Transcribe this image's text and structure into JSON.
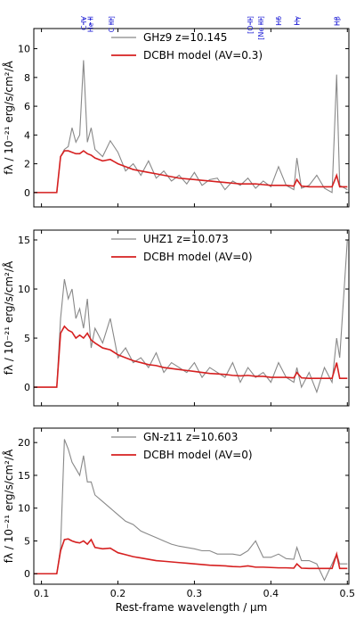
{
  "chart_data": [
    {
      "type": "line",
      "ylabel": "fλ / 10⁻²¹ erg/s/cm²/Å",
      "x": [
        0.09,
        0.1,
        0.11,
        0.12,
        0.125,
        0.13,
        0.135,
        0.14,
        0.145,
        0.15,
        0.155,
        0.16,
        0.165,
        0.17,
        0.18,
        0.19,
        0.2,
        0.21,
        0.22,
        0.23,
        0.24,
        0.25,
        0.26,
        0.27,
        0.28,
        0.29,
        0.3,
        0.31,
        0.32,
        0.33,
        0.34,
        0.35,
        0.36,
        0.37,
        0.38,
        0.39,
        0.4,
        0.41,
        0.42,
        0.43,
        0.434,
        0.44,
        0.45,
        0.46,
        0.47,
        0.48,
        0.486,
        0.49,
        0.5
      ],
      "series": [
        {
          "name": "GHz9 z=10.145",
          "color": "#888888",
          "values": [
            0,
            0,
            0,
            0,
            2.5,
            3.0,
            3.2,
            4.5,
            3.5,
            4.0,
            9.2,
            3.5,
            4.5,
            3.0,
            2.5,
            3.6,
            2.8,
            1.5,
            2.0,
            1.2,
            2.2,
            1.0,
            1.5,
            0.8,
            1.2,
            0.6,
            1.4,
            0.5,
            0.9,
            1.0,
            0.2,
            0.8,
            0.5,
            1.0,
            0.3,
            0.8,
            0.4,
            1.8,
            0.5,
            0.2,
            2.4,
            0.3,
            0.5,
            1.2,
            0.3,
            0.0,
            8.2,
            0.5,
            0.2
          ]
        },
        {
          "name": "DCBH model (AV=0.3)",
          "color": "#d62020",
          "values": [
            0,
            0,
            0,
            0,
            2.5,
            2.9,
            2.9,
            2.8,
            2.7,
            2.7,
            2.9,
            2.7,
            2.6,
            2.4,
            2.2,
            2.3,
            2.0,
            1.8,
            1.6,
            1.5,
            1.4,
            1.3,
            1.2,
            1.1,
            1.0,
            0.95,
            0.9,
            0.85,
            0.8,
            0.75,
            0.7,
            0.65,
            0.6,
            0.6,
            0.6,
            0.55,
            0.5,
            0.5,
            0.5,
            0.45,
            0.9,
            0.45,
            0.4,
            0.4,
            0.4,
            0.4,
            1.2,
            0.4,
            0.4
          ]
        }
      ],
      "xlim": [
        0.09,
        0.502
      ],
      "xticks": [
        0.1,
        0.2,
        0.3,
        0.4,
        0.5
      ],
      "ylim": [
        -1,
        11.4
      ],
      "yticks": [
        0,
        2,
        4,
        6,
        8,
        10
      ],
      "line_labels": [
        {
          "label": "C IV",
          "x": 0.155
        },
        {
          "label": "He II",
          "x": 0.164
        },
        {
          "label": "C III]",
          "x": 0.191
        },
        {
          "label": "[O II]",
          "x": 0.373
        },
        {
          "label": "[Ne III]",
          "x": 0.387
        },
        {
          "label": "Hδ",
          "x": 0.41
        },
        {
          "label": "Hγ",
          "x": 0.434
        },
        {
          "label": "Hβ",
          "x": 0.486
        }
      ]
    },
    {
      "type": "line",
      "ylabel": "fλ / 10⁻²¹ erg/s/cm²/Å",
      "x": [
        0.09,
        0.1,
        0.11,
        0.12,
        0.125,
        0.13,
        0.135,
        0.14,
        0.145,
        0.15,
        0.155,
        0.16,
        0.165,
        0.17,
        0.18,
        0.19,
        0.2,
        0.21,
        0.22,
        0.23,
        0.24,
        0.25,
        0.26,
        0.27,
        0.28,
        0.29,
        0.3,
        0.31,
        0.32,
        0.33,
        0.34,
        0.35,
        0.36,
        0.37,
        0.38,
        0.39,
        0.4,
        0.41,
        0.42,
        0.43,
        0.434,
        0.44,
        0.45,
        0.46,
        0.47,
        0.48,
        0.486,
        0.49,
        0.5
      ],
      "series": [
        {
          "name": "UHZ1 z=10.073",
          "color": "#888888",
          "values": [
            0,
            0,
            0,
            0,
            7,
            11,
            9,
            10,
            7,
            8,
            6,
            9,
            4,
            6,
            4.5,
            7,
            3,
            4,
            2.5,
            3,
            2,
            3.5,
            1.5,
            2.5,
            2,
            1.5,
            2.5,
            1,
            2,
            1.5,
            1,
            2.5,
            0.5,
            2,
            1,
            1.5,
            0.5,
            2.5,
            1,
            0.5,
            2,
            0,
            1.5,
            -0.5,
            2,
            0.5,
            5,
            3,
            15
          ]
        },
        {
          "name": "DCBH model (AV=0)",
          "color": "#d62020",
          "values": [
            0,
            0,
            0,
            0,
            5.5,
            6.2,
            5.8,
            5.6,
            5.0,
            5.3,
            5.0,
            5.5,
            4.8,
            4.5,
            4.0,
            3.8,
            3.3,
            3.0,
            2.7,
            2.5,
            2.3,
            2.2,
            2.0,
            1.9,
            1.8,
            1.7,
            1.6,
            1.5,
            1.4,
            1.35,
            1.3,
            1.2,
            1.15,
            1.2,
            1.1,
            1.1,
            1.0,
            1.0,
            1.0,
            0.95,
            1.5,
            0.95,
            0.9,
            0.9,
            0.9,
            0.9,
            2.5,
            0.9,
            0.9
          ]
        }
      ],
      "xlim": [
        0.09,
        0.502
      ],
      "xticks": [
        0.1,
        0.2,
        0.3,
        0.4,
        0.5
      ],
      "ylim": [
        -1.9,
        16
      ],
      "yticks": [
        0,
        5,
        10,
        15
      ]
    },
    {
      "type": "line",
      "ylabel": "fλ / 10⁻²¹ erg/s/cm²/Å",
      "xlabel": "Rest-frame wavelength / µm",
      "x": [
        0.09,
        0.1,
        0.11,
        0.12,
        0.125,
        0.13,
        0.135,
        0.14,
        0.145,
        0.15,
        0.155,
        0.16,
        0.165,
        0.17,
        0.18,
        0.19,
        0.2,
        0.21,
        0.22,
        0.23,
        0.24,
        0.25,
        0.26,
        0.27,
        0.28,
        0.29,
        0.3,
        0.31,
        0.32,
        0.33,
        0.34,
        0.35,
        0.36,
        0.37,
        0.38,
        0.39,
        0.4,
        0.41,
        0.42,
        0.43,
        0.434,
        0.44,
        0.45,
        0.46,
        0.47,
        0.48,
        0.486,
        0.49,
        0.5
      ],
      "series": [
        {
          "name": "GN-z11 z=10.603",
          "color": "#888888",
          "values": [
            0,
            0,
            0,
            0,
            4,
            20.5,
            19,
            17,
            16,
            15,
            18,
            14,
            14,
            12,
            11,
            10,
            9,
            8,
            7.5,
            6.5,
            6,
            5.5,
            5,
            4.5,
            4.2,
            4,
            3.8,
            3.5,
            3.5,
            3,
            3,
            3,
            2.8,
            3.5,
            5,
            2.5,
            2.5,
            3,
            2.3,
            2.2,
            4,
            2,
            2,
            1.5,
            -1,
            1.5,
            3,
            1.5,
            1.5
          ]
        },
        {
          "name": "DCBH model (AV=0)",
          "color": "#d62020",
          "values": [
            0,
            0,
            0,
            0,
            3.5,
            5.2,
            5.3,
            5.0,
            4.8,
            4.7,
            5.0,
            4.5,
            5.2,
            4.0,
            3.8,
            3.9,
            3.2,
            2.9,
            2.6,
            2.4,
            2.2,
            2.0,
            1.9,
            1.8,
            1.7,
            1.6,
            1.5,
            1.4,
            1.3,
            1.25,
            1.2,
            1.1,
            1.05,
            1.2,
            1.0,
            1.0,
            0.95,
            0.9,
            0.9,
            0.85,
            1.5,
            0.85,
            0.8,
            0.8,
            0.8,
            0.8,
            3.0,
            0.8,
            0.8
          ]
        }
      ],
      "xlim": [
        0.09,
        0.502
      ],
      "xticks": [
        0.1,
        0.2,
        0.3,
        0.4,
        0.5
      ],
      "ylim": [
        -1.6,
        22.2
      ],
      "yticks": [
        0,
        5,
        10,
        15,
        20
      ]
    }
  ]
}
